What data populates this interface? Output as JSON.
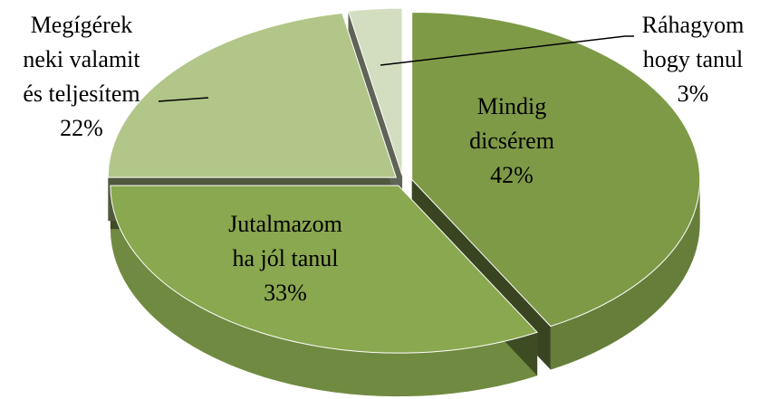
{
  "chart_data": {
    "type": "pie",
    "categories": [
      [
        "Mindig",
        "dicsérem"
      ],
      [
        "Jutalmazom",
        "ha jól tanul"
      ],
      [
        "Megígérek",
        "neki valamit",
        "és teljesítem"
      ],
      [
        "Ráhagyom",
        "hogy tanul"
      ]
    ],
    "values": [
      42,
      33,
      22,
      3
    ],
    "value_labels": [
      "42%",
      "33%",
      "22%",
      "3%"
    ],
    "colors": [
      "#7e9a47",
      "#8aa84f",
      "#b1c688",
      "#d3dec0"
    ]
  }
}
